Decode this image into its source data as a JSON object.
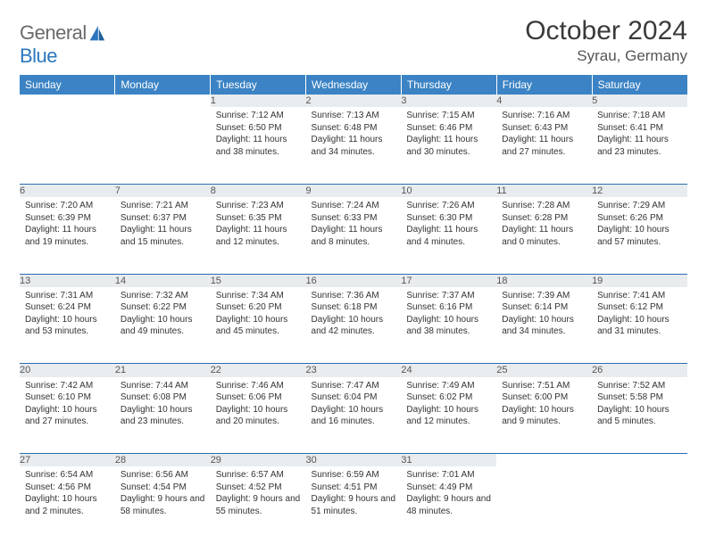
{
  "logo": {
    "text1": "General",
    "text2": "Blue"
  },
  "title": "October 2024",
  "location": "Syrau, Germany",
  "colors": {
    "header_bg": "#3b83c4",
    "header_text": "#ffffff",
    "daynum_bg": "#e9ecef",
    "border": "#2a6db0",
    "logo_gray": "#6a6a6a",
    "logo_blue": "#2b77bd"
  },
  "weekdays": [
    "Sunday",
    "Monday",
    "Tuesday",
    "Wednesday",
    "Thursday",
    "Friday",
    "Saturday"
  ],
  "weeks": [
    [
      null,
      null,
      {
        "n": "1",
        "sr": "7:12 AM",
        "ss": "6:50 PM",
        "dl": "11 hours and 38 minutes."
      },
      {
        "n": "2",
        "sr": "7:13 AM",
        "ss": "6:48 PM",
        "dl": "11 hours and 34 minutes."
      },
      {
        "n": "3",
        "sr": "7:15 AM",
        "ss": "6:46 PM",
        "dl": "11 hours and 30 minutes."
      },
      {
        "n": "4",
        "sr": "7:16 AM",
        "ss": "6:43 PM",
        "dl": "11 hours and 27 minutes."
      },
      {
        "n": "5",
        "sr": "7:18 AM",
        "ss": "6:41 PM",
        "dl": "11 hours and 23 minutes."
      }
    ],
    [
      {
        "n": "6",
        "sr": "7:20 AM",
        "ss": "6:39 PM",
        "dl": "11 hours and 19 minutes."
      },
      {
        "n": "7",
        "sr": "7:21 AM",
        "ss": "6:37 PM",
        "dl": "11 hours and 15 minutes."
      },
      {
        "n": "8",
        "sr": "7:23 AM",
        "ss": "6:35 PM",
        "dl": "11 hours and 12 minutes."
      },
      {
        "n": "9",
        "sr": "7:24 AM",
        "ss": "6:33 PM",
        "dl": "11 hours and 8 minutes."
      },
      {
        "n": "10",
        "sr": "7:26 AM",
        "ss": "6:30 PM",
        "dl": "11 hours and 4 minutes."
      },
      {
        "n": "11",
        "sr": "7:28 AM",
        "ss": "6:28 PM",
        "dl": "11 hours and 0 minutes."
      },
      {
        "n": "12",
        "sr": "7:29 AM",
        "ss": "6:26 PM",
        "dl": "10 hours and 57 minutes."
      }
    ],
    [
      {
        "n": "13",
        "sr": "7:31 AM",
        "ss": "6:24 PM",
        "dl": "10 hours and 53 minutes."
      },
      {
        "n": "14",
        "sr": "7:32 AM",
        "ss": "6:22 PM",
        "dl": "10 hours and 49 minutes."
      },
      {
        "n": "15",
        "sr": "7:34 AM",
        "ss": "6:20 PM",
        "dl": "10 hours and 45 minutes."
      },
      {
        "n": "16",
        "sr": "7:36 AM",
        "ss": "6:18 PM",
        "dl": "10 hours and 42 minutes."
      },
      {
        "n": "17",
        "sr": "7:37 AM",
        "ss": "6:16 PM",
        "dl": "10 hours and 38 minutes."
      },
      {
        "n": "18",
        "sr": "7:39 AM",
        "ss": "6:14 PM",
        "dl": "10 hours and 34 minutes."
      },
      {
        "n": "19",
        "sr": "7:41 AM",
        "ss": "6:12 PM",
        "dl": "10 hours and 31 minutes."
      }
    ],
    [
      {
        "n": "20",
        "sr": "7:42 AM",
        "ss": "6:10 PM",
        "dl": "10 hours and 27 minutes."
      },
      {
        "n": "21",
        "sr": "7:44 AM",
        "ss": "6:08 PM",
        "dl": "10 hours and 23 minutes."
      },
      {
        "n": "22",
        "sr": "7:46 AM",
        "ss": "6:06 PM",
        "dl": "10 hours and 20 minutes."
      },
      {
        "n": "23",
        "sr": "7:47 AM",
        "ss": "6:04 PM",
        "dl": "10 hours and 16 minutes."
      },
      {
        "n": "24",
        "sr": "7:49 AM",
        "ss": "6:02 PM",
        "dl": "10 hours and 12 minutes."
      },
      {
        "n": "25",
        "sr": "7:51 AM",
        "ss": "6:00 PM",
        "dl": "10 hours and 9 minutes."
      },
      {
        "n": "26",
        "sr": "7:52 AM",
        "ss": "5:58 PM",
        "dl": "10 hours and 5 minutes."
      }
    ],
    [
      {
        "n": "27",
        "sr": "6:54 AM",
        "ss": "4:56 PM",
        "dl": "10 hours and 2 minutes."
      },
      {
        "n": "28",
        "sr": "6:56 AM",
        "ss": "4:54 PM",
        "dl": "9 hours and 58 minutes."
      },
      {
        "n": "29",
        "sr": "6:57 AM",
        "ss": "4:52 PM",
        "dl": "9 hours and 55 minutes."
      },
      {
        "n": "30",
        "sr": "6:59 AM",
        "ss": "4:51 PM",
        "dl": "9 hours and 51 minutes."
      },
      {
        "n": "31",
        "sr": "7:01 AM",
        "ss": "4:49 PM",
        "dl": "9 hours and 48 minutes."
      },
      null,
      null
    ]
  ],
  "labels": {
    "sunrise": "Sunrise:",
    "sunset": "Sunset:",
    "daylight": "Daylight:"
  }
}
